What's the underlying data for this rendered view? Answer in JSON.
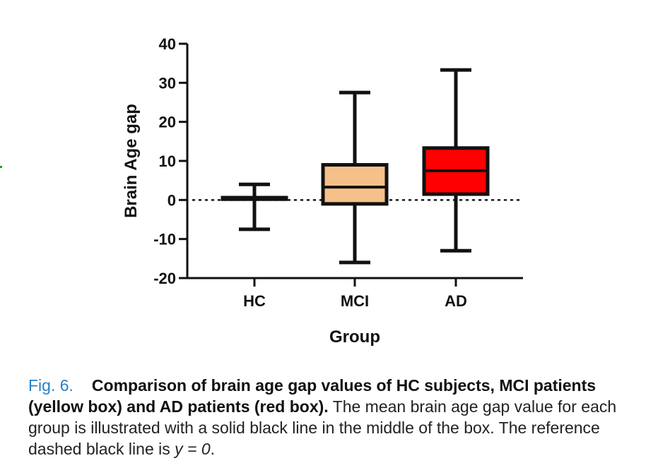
{
  "chart_data": {
    "type": "box",
    "ylabel": "Brain Age gap",
    "xlabel": "Group",
    "ylim": [
      -20,
      40
    ],
    "yticks": [
      40,
      30,
      20,
      10,
      0,
      -10,
      -20
    ],
    "categories": [
      "HC",
      "MCI",
      "AD"
    ],
    "boxes": [
      {
        "category": "HC",
        "min": -7.5,
        "q1": 0.2,
        "median": 0.4,
        "q3": 0.6,
        "max": 4,
        "color": "#f5c08a"
      },
      {
        "category": "MCI",
        "min": -16,
        "q1": -1,
        "median": 3.3,
        "q3": 9,
        "max": 27.5,
        "color": "#f5c08a"
      },
      {
        "category": "AD",
        "min": -13,
        "q1": 1.5,
        "median": 7.5,
        "q3": 13.3,
        "max": 33.3,
        "color": "#ff0000"
      }
    ],
    "reference_line": {
      "y": 0,
      "style": "dotted"
    }
  },
  "caption": {
    "label": "Fig. 6.",
    "bold": "Comparison of brain age gap values of HC subjects, MCI patients (yellow box) and AD patients (red box).",
    "text": " The mean brain age gap value for each group is illustrated with a solid black line in the middle of the box. The reference dashed black line is ",
    "equation": "y = 0",
    "end": "."
  }
}
